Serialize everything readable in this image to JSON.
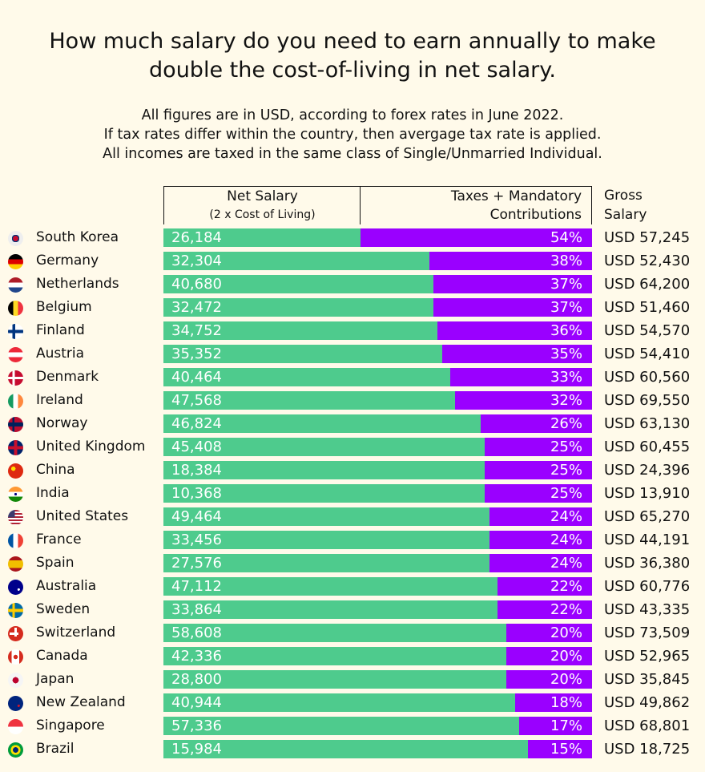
{
  "title_lines": [
    "How much salary do you need to earn annually to make",
    "double the cost-of-living in net salary."
  ],
  "subtitle_lines": [
    "All figures are in USD, according to forex rates in June 2022.",
    "If tax rates differ within the country, then avergage tax rate is applied.",
    "All incomes are taxed in the same class of Single/Unmarried Individual."
  ],
  "headers": {
    "net_l1": "Net Salary",
    "net_l2": "(2 x Cost of Living)",
    "tax_l1": "Taxes + Mandatory",
    "tax_l2": "Contributions",
    "gross_l1": "Gross",
    "gross_l2": "Salary"
  },
  "colors": {
    "net": "#4ecb8d",
    "tax": "#9a00ff",
    "background": "#fffaea"
  },
  "chart_data": {
    "type": "bar",
    "stacked": true,
    "orientation": "horizontal",
    "categories": [
      "South Korea",
      "Germany",
      "Netherlands",
      "Belgium",
      "Finland",
      "Austria",
      "Denmark",
      "Ireland",
      "Norway",
      "United Kingdom",
      "China",
      "India",
      "United States",
      "France",
      "Spain",
      "Australia",
      "Sweden",
      "Switzerland",
      "Canada",
      "Japan",
      "New Zealand",
      "Singapore",
      "Brazil"
    ],
    "net_salary": [
      "26,184",
      "32,304",
      "40,680",
      "32,472",
      "34,752",
      "35,352",
      "40,464",
      "47,568",
      "46,824",
      "45,408",
      "18,384",
      "10,368",
      "49,464",
      "33,456",
      "27,576",
      "47,112",
      "33,864",
      "58,608",
      "42,336",
      "28,800",
      "40,944",
      "57,336",
      "15,984"
    ],
    "tax_percent": [
      "54%",
      "38%",
      "37%",
      "37%",
      "36%",
      "35%",
      "33%",
      "32%",
      "26%",
      "25%",
      "25%",
      "25%",
      "24%",
      "24%",
      "24%",
      "22%",
      "22%",
      "20%",
      "20%",
      "20%",
      "18%",
      "17%",
      "15%"
    ],
    "gross_salary": [
      "USD 57,245",
      "USD 52,430",
      "USD 64,200",
      "USD 51,460",
      "USD 54,570",
      "USD 54,410",
      "USD 60,560",
      "USD 69,550",
      "USD 63,130",
      "USD 60,455",
      "USD 24,396",
      "USD 13,910",
      "USD 65,270",
      "USD 44,191",
      "USD 36,380",
      "USD 60,776",
      "USD 43,335",
      "USD 73,509",
      "USD 52,965",
      "USD 35,845",
      "USD 49,862",
      "USD 68,801",
      "USD 18,725"
    ]
  }
}
